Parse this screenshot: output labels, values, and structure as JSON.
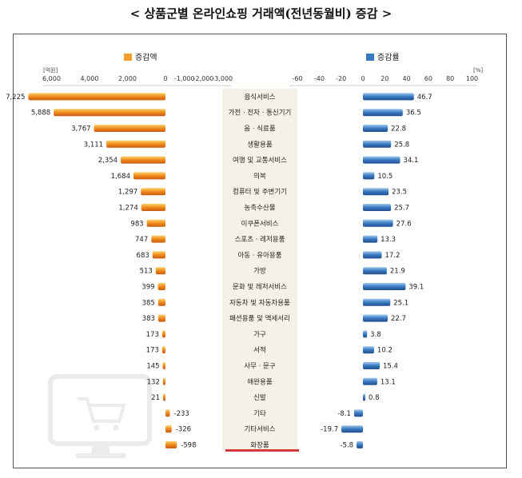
{
  "title": "< 상품군별 온라인쇼핑 거래액(전년동월비) 증감 >",
  "chart_data": {
    "type": "bar",
    "categories": [
      "음식서비스",
      "가전 · 전자 · 통신기기",
      "음 · 식료품",
      "생활용품",
      "여행 및 교통서비스",
      "의복",
      "컴퓨터 및 주변기기",
      "농축수산물",
      "이쿠폰서비스",
      "스포츠 · 레저용품",
      "아동 · 유아용품",
      "가방",
      "문화 및 레저서비스",
      "자동차 및 자동차용품",
      "패션용품 및 액세서리",
      "가구",
      "서적",
      "사무 · 문구",
      "애완용품",
      "신발",
      "기타",
      "기타서비스",
      "화장품"
    ],
    "series": [
      {
        "name": "증감액",
        "unit": "[억원]",
        "values": [
          7225,
          5888,
          3767,
          3111,
          2354,
          1684,
          1297,
          1274,
          983,
          747,
          683,
          513,
          399,
          385,
          383,
          173,
          173,
          145,
          132,
          21,
          -233,
          -326,
          -598
        ],
        "value_labels": [
          "7,225",
          "5,888",
          "3,767",
          "3,111",
          "2,354",
          "1,684",
          "1,297",
          "1,274",
          "983",
          "747",
          "683",
          "513",
          "399",
          "385",
          "383",
          "173",
          "173",
          "145",
          "132",
          "21",
          "-233",
          "-326",
          "-598"
        ],
        "color": "#f0a028",
        "xticks": [
          6000,
          4000,
          2000,
          0,
          -1000,
          -2000,
          -3000
        ],
        "xtick_labels": [
          "6,000",
          "4,000",
          "2,000",
          "0",
          "-1,000",
          "-2,000",
          "-3,000"
        ]
      },
      {
        "name": "증감률",
        "unit": "[%]",
        "values": [
          46.7,
          36.5,
          22.8,
          25.8,
          34.1,
          10.5,
          23.5,
          25.7,
          27.6,
          13.3,
          17.2,
          21.9,
          39.1,
          25.1,
          22.7,
          3.8,
          10.2,
          15.4,
          13.1,
          0.8,
          -8.1,
          -19.7,
          -5.8
        ],
        "value_labels": [
          "46.7",
          "36.5",
          "22.8",
          "25.8",
          "34.1",
          "10.5",
          "23.5",
          "25.7",
          "27.6",
          "13.3",
          "17.2",
          "21.9",
          "39.1",
          "25.1",
          "22.7",
          "3.8",
          "10.2",
          "15.4",
          "13.1",
          "0.8",
          "-8.1",
          "-19.7",
          "-5.8"
        ],
        "color": "#3a78c0",
        "xticks": [
          -60,
          -40,
          -20,
          0,
          20,
          40,
          60,
          80,
          100
        ],
        "xtick_labels": [
          "-60",
          "-40",
          "-20",
          "0",
          "20",
          "40",
          "60",
          "80",
          "100"
        ]
      }
    ],
    "grid": false,
    "legend": "top"
  }
}
